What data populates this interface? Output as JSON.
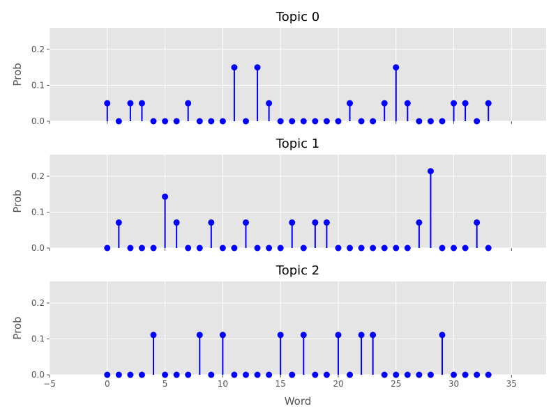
{
  "chart_data": [
    {
      "type": "stem",
      "title": "Topic 0",
      "xlabel": "",
      "ylabel": "Prob",
      "xlim": [
        -5,
        38
      ],
      "ylim": [
        0,
        0.26
      ],
      "xticks": [
        -5,
        0,
        5,
        10,
        15,
        20,
        25,
        30,
        35
      ],
      "yticks": [
        0.0,
        0.1,
        0.2
      ],
      "ytick_labels": [
        "0.0",
        "0.1",
        "0.2"
      ],
      "show_xtick_labels": false,
      "grid": true,
      "color": "#0000ff",
      "x": [
        0,
        1,
        2,
        3,
        4,
        5,
        6,
        7,
        8,
        9,
        10,
        11,
        12,
        13,
        14,
        15,
        16,
        17,
        18,
        19,
        20,
        21,
        22,
        23,
        24,
        25,
        26,
        27,
        28,
        29,
        30,
        31,
        32,
        33
      ],
      "values": [
        0.05,
        0,
        0.05,
        0.05,
        0,
        0,
        0,
        0.05,
        0,
        0,
        0,
        0.15,
        0,
        0.15,
        0.05,
        0,
        0,
        0,
        0,
        0,
        0,
        0.05,
        0,
        0,
        0.05,
        0.15,
        0.05,
        0,
        0,
        0,
        0.05,
        0.05,
        0,
        0.05
      ]
    },
    {
      "type": "stem",
      "title": "Topic 1",
      "xlabel": "",
      "ylabel": "Prob",
      "xlim": [
        -5,
        38
      ],
      "ylim": [
        0,
        0.26
      ],
      "xticks": [
        -5,
        0,
        5,
        10,
        15,
        20,
        25,
        30,
        35
      ],
      "yticks": [
        0.0,
        0.1,
        0.2
      ],
      "ytick_labels": [
        "0.0",
        "0.1",
        "0.2"
      ],
      "show_xtick_labels": false,
      "grid": true,
      "color": "#0000ff",
      "x": [
        0,
        1,
        2,
        3,
        4,
        5,
        6,
        7,
        8,
        9,
        10,
        11,
        12,
        13,
        14,
        15,
        16,
        17,
        18,
        19,
        20,
        21,
        22,
        23,
        24,
        25,
        26,
        27,
        28,
        29,
        30,
        31,
        32,
        33
      ],
      "values": [
        0,
        0.071,
        0,
        0,
        0,
        0.143,
        0.071,
        0,
        0,
        0.071,
        0,
        0,
        0.071,
        0,
        0,
        0,
        0.071,
        0,
        0.071,
        0.071,
        0,
        0,
        0,
        0,
        0,
        0,
        0,
        0.071,
        0.214,
        0,
        0,
        0,
        0.071,
        0
      ]
    },
    {
      "type": "stem",
      "title": "Topic 2",
      "xlabel": "Word",
      "ylabel": "Prob",
      "xlim": [
        -5,
        38
      ],
      "ylim": [
        0,
        0.26
      ],
      "xticks": [
        -5,
        0,
        5,
        10,
        15,
        20,
        25,
        30,
        35
      ],
      "xtick_labels": [
        "−5",
        "0",
        "5",
        "10",
        "15",
        "20",
        "25",
        "30",
        "35"
      ],
      "yticks": [
        0.0,
        0.1,
        0.2
      ],
      "ytick_labels": [
        "0.0",
        "0.1",
        "0.2"
      ],
      "show_xtick_labels": true,
      "grid": true,
      "color": "#0000ff",
      "x": [
        0,
        1,
        2,
        3,
        4,
        5,
        6,
        7,
        8,
        9,
        10,
        11,
        12,
        13,
        14,
        15,
        16,
        17,
        18,
        19,
        20,
        21,
        22,
        23,
        24,
        25,
        26,
        27,
        28,
        29,
        30,
        31,
        32,
        33
      ],
      "values": [
        0,
        0,
        0,
        0,
        0.111,
        0,
        0,
        0,
        0.111,
        0,
        0.111,
        0,
        0,
        0,
        0,
        0.111,
        0,
        0.111,
        0,
        0,
        0.111,
        0,
        0.111,
        0.111,
        0,
        0,
        0,
        0,
        0,
        0.111,
        0,
        0,
        0,
        0
      ]
    }
  ]
}
